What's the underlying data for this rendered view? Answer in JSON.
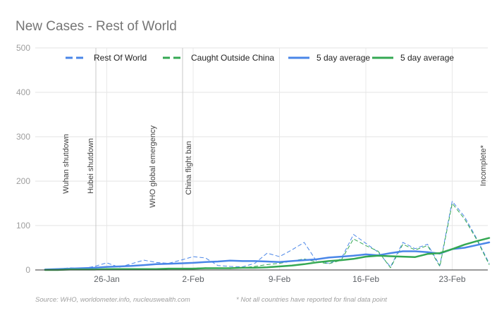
{
  "chart_data": {
    "type": "line",
    "title": "New Cases - Rest of World",
    "ylim": [
      0,
      500
    ],
    "y_ticks": [
      "0",
      "100",
      "200",
      "300",
      "400",
      "500"
    ],
    "x_ticks": [
      "26-Jan",
      "2-Feb",
      "9-Feb",
      "16-Feb",
      "23-Feb"
    ],
    "x_dates": [
      "2020-01-21",
      "2020-01-22",
      "2020-01-23",
      "2020-01-24",
      "2020-01-25",
      "2020-01-26",
      "2020-01-27",
      "2020-01-28",
      "2020-01-29",
      "2020-01-30",
      "2020-01-31",
      "2020-02-01",
      "2020-02-02",
      "2020-02-03",
      "2020-02-04",
      "2020-02-05",
      "2020-02-06",
      "2020-02-07",
      "2020-02-08",
      "2020-02-09",
      "2020-02-10",
      "2020-02-11",
      "2020-02-12",
      "2020-02-13",
      "2020-02-14",
      "2020-02-15",
      "2020-02-16",
      "2020-02-17",
      "2020-02-18",
      "2020-02-19",
      "2020-02-20",
      "2020-02-21",
      "2020-02-22",
      "2020-02-23",
      "2020-02-24",
      "2020-02-25",
      "2020-02-26"
    ],
    "grid": true,
    "legend_position": "top",
    "series": [
      {
        "name": "Rest Of World",
        "style": "dashed",
        "color": "#4a86e8",
        "values": [
          1,
          2,
          5,
          3,
          8,
          16,
          6,
          14,
          22,
          17,
          15,
          22,
          30,
          27,
          10,
          8,
          7,
          15,
          38,
          30,
          45,
          62,
          20,
          15,
          25,
          80,
          60,
          40,
          7,
          62,
          48,
          58,
          10,
          155,
          120,
          70,
          15
        ]
      },
      {
        "name": "Caught Outside China",
        "style": "dashed",
        "color": "#34a853",
        "values": [
          0,
          0,
          1,
          2,
          2,
          2,
          1,
          2,
          3,
          2,
          3,
          3,
          4,
          5,
          4,
          3,
          5,
          8,
          12,
          15,
          20,
          25,
          18,
          14,
          22,
          70,
          55,
          42,
          5,
          58,
          45,
          55,
          8,
          150,
          115,
          68,
          12
        ]
      },
      {
        "name": "5 day average",
        "style": "solid",
        "color": "#4a86e8",
        "values": [
          1,
          2,
          3,
          4,
          5,
          7,
          8,
          9,
          11,
          13,
          14,
          15,
          16,
          18,
          19,
          21,
          20,
          20,
          19,
          18,
          20,
          22,
          24,
          28,
          30,
          32,
          35,
          33,
          38,
          42,
          42,
          40,
          37,
          47,
          50,
          56,
          62
        ]
      },
      {
        "name": "5 day average",
        "style": "solid",
        "color": "#34a853",
        "values": [
          0,
          0,
          1,
          1,
          1,
          2,
          2,
          2,
          2,
          2,
          3,
          3,
          3,
          4,
          4,
          4,
          5,
          5,
          6,
          8,
          10,
          13,
          17,
          20,
          22,
          25,
          30,
          32,
          31,
          30,
          29,
          36,
          38,
          47,
          57,
          65,
          72
        ]
      }
    ],
    "annotations": [
      "Wuhan shutdown",
      "Hubei shutdown",
      "WHO global emergency",
      "China flight ban",
      "Incomplete*"
    ]
  },
  "footer": {
    "source": "Source: WHO, worldometer.info, nucleuswealth.com",
    "note": "* Not all countries have reported for final data point"
  }
}
